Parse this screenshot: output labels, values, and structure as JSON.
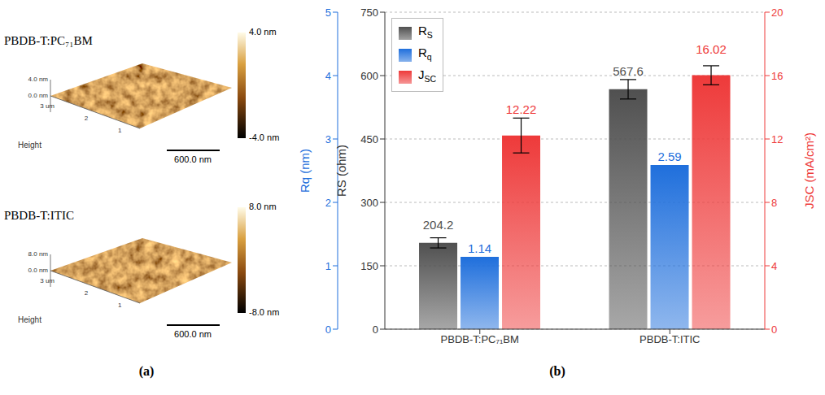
{
  "panel_a": {
    "label": "(a)",
    "images": [
      {
        "title": "PBDB-T:PC₇₁BM",
        "colorbar": {
          "range": [
            -4,
            4
          ],
          "ticks": [
            {
              "value": 4,
              "label": "4.0 nm"
            },
            {
              "value": -4,
              "label": "-4.0 nm"
            }
          ]
        },
        "z_ticks": [
          {
            "value": 4,
            "label": "4.0 nm"
          },
          {
            "value": 0,
            "label": "0.0 nm"
          }
        ],
        "xy_ticks": [
          "3 um",
          "2",
          "1"
        ],
        "axis_label": "Height",
        "scale_bar": "600.0 nm"
      },
      {
        "title": "PBDB-T:ITIC",
        "colorbar": {
          "range": [
            -8,
            8
          ],
          "ticks": [
            {
              "value": 8,
              "label": "8.0 nm"
            },
            {
              "value": -8,
              "label": "-8.0 nm"
            }
          ]
        },
        "z_ticks": [
          {
            "value": 8,
            "label": "8.0 nm"
          },
          {
            "value": 0,
            "label": "0.0 nm"
          }
        ],
        "xy_ticks": [
          "3 um",
          "2",
          "1"
        ],
        "axis_label": "Height",
        "scale_bar": "600.0 nm"
      }
    ]
  },
  "panel_b_label": "(b)",
  "chart_data": {
    "type": "bar",
    "categories": [
      "PBDB-T:PC₇₁BM",
      "PBDB-T:ITIC"
    ],
    "series": [
      {
        "name": "RS",
        "color": "#505050",
        "values": [
          204.2,
          567.6
        ],
        "errors": [
          12,
          23
        ]
      },
      {
        "name": "Rq",
        "color": "#1f6fdc",
        "values": [
          1.14,
          2.59
        ],
        "axis": "y3"
      },
      {
        "name": "JSC",
        "color": "#ee3a3a",
        "values": [
          12.22,
          16.02
        ],
        "errors": [
          1.1,
          0.6
        ],
        "axis": "y2"
      }
    ],
    "y_label": "RS (ohm)",
    "y2_label": "JSC (mA/cm²)",
    "y3_label": "Rq (nm)",
    "ylim": [
      0,
      750
    ],
    "yticks": [
      0,
      150,
      300,
      450,
      600,
      750
    ],
    "y2lim": [
      0,
      20
    ],
    "y2ticks": [
      0,
      4,
      8,
      12,
      16,
      20
    ],
    "y3lim": [
      0,
      5
    ],
    "y3ticks": [
      0,
      1,
      2,
      3,
      4,
      5
    ],
    "grid": true,
    "legend": "upper left",
    "data_labels": true
  }
}
